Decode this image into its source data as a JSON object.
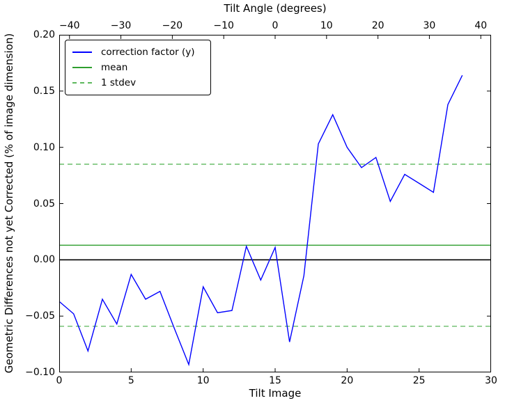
{
  "chart_data": {
    "type": "line",
    "top_xlabel": "Tilt Angle (degrees)",
    "xlabel": "Tilt Image",
    "ylabel": "Geometric Differences not yet Corrected (% of image dimension)",
    "xlim": [
      0,
      30
    ],
    "ylim": [
      -0.1,
      0.2
    ],
    "top_xlim": [
      -42,
      42
    ],
    "grid": false,
    "x_ticks": [
      0,
      5,
      10,
      15,
      20,
      25,
      30
    ],
    "x_tick_labels": [
      "0",
      "5",
      "10",
      "15",
      "20",
      "25",
      "30"
    ],
    "y_ticks": [
      0.2,
      0.15,
      0.1,
      0.05,
      0.0,
      -0.05,
      -0.1
    ],
    "y_tick_labels": [
      "0.20",
      "0.15",
      "0.10",
      "0.05",
      "0.00",
      "−0.05",
      "−0.10"
    ],
    "top_x_ticks": [
      -40,
      -30,
      -20,
      -10,
      0,
      10,
      20,
      30,
      40
    ],
    "top_x_tick_labels": [
      "−40",
      "−30",
      "−20",
      "−10",
      "0",
      "10",
      "20",
      "30",
      "40"
    ],
    "series": [
      {
        "name": "correction factor (y)",
        "color": "#0000ff",
        "style": "solid",
        "x": [
          0,
          1,
          2,
          3,
          4,
          5,
          6,
          7,
          8,
          9,
          10,
          11,
          12,
          13,
          14,
          15,
          16,
          17,
          18,
          19,
          20,
          21,
          22,
          23,
          24,
          25,
          26,
          27,
          28
        ],
        "y": [
          -0.037,
          -0.048,
          -0.081,
          -0.035,
          -0.057,
          -0.013,
          -0.035,
          -0.028,
          -0.061,
          -0.093,
          -0.024,
          -0.047,
          -0.045,
          0.012,
          -0.018,
          0.011,
          -0.073,
          -0.014,
          0.103,
          0.129,
          0.1,
          0.082,
          0.091,
          0.052,
          0.076,
          0.068,
          0.06,
          0.138,
          0.164
        ]
      }
    ],
    "mean_line": {
      "name": "mean",
      "value": 0.013,
      "color": "#2e9e2e",
      "style": "solid"
    },
    "stdev_lines": {
      "name": "1 stdev",
      "stdev": 0.072,
      "values": [
        0.085,
        -0.059
      ],
      "color": "#5cb85c",
      "style": "dashed"
    },
    "zero_line": {
      "value": 0.0,
      "color": "#000000"
    },
    "legend": {
      "position": "upper left",
      "entries": [
        {
          "label": "correction factor (y)",
          "color": "#0000ff",
          "style": "solid"
        },
        {
          "label": "mean",
          "color": "#2e9e2e",
          "style": "solid"
        },
        {
          "label": "1 stdev",
          "color": "#5cb85c",
          "style": "dashed"
        }
      ]
    }
  }
}
